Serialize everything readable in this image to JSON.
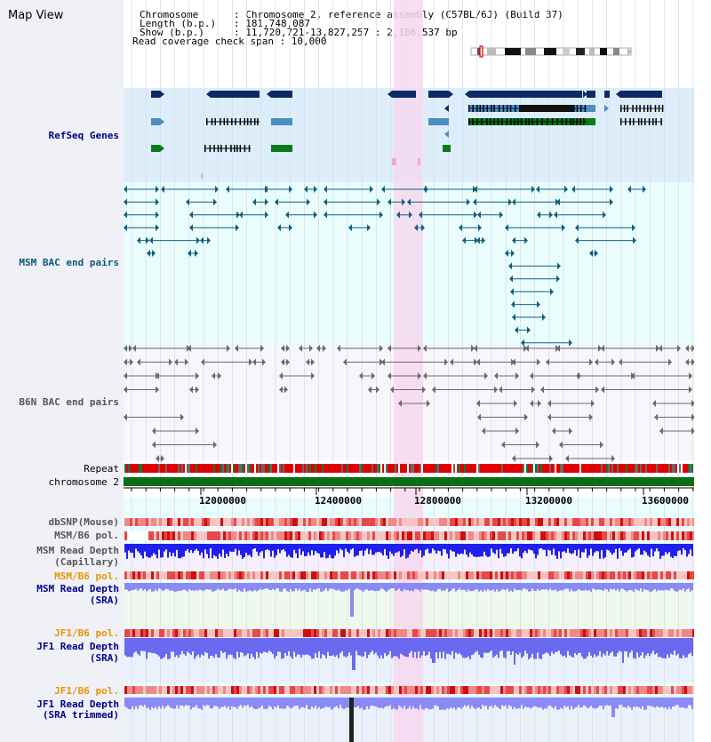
{
  "app": {
    "title": "Map View"
  },
  "header": {
    "line1": "Chromosome      : Chromosome 2, reference assembly (C57BL/6J) (Build 37)",
    "line2": "Length (b.p.)   : 181,748,087",
    "line3": "Show (b.p.)     : 11,720,721-13,827,257 : 2,106,537 bp",
    "line4": "Read coverage check span : 10,000"
  },
  "tracks": {
    "refseq": "RefSeq Genes",
    "msm_bac": "MSM BAC end pairs",
    "b6n_bac": "B6N BAC end pairs",
    "repeat": "Repeat",
    "chromosome": "chromosome 2",
    "dbsnp": "dbSNP(Mouse)",
    "msm_pol_1": "MSM/B6 pol.",
    "msm_rd_cap_1": "MSM Read Depth",
    "msm_rd_cap_2": "(Capillary)",
    "msm_pol_2": "MSM/B6 pol.",
    "msm_rd_sra_1": "MSM Read Depth",
    "msm_rd_sra_2": "(SRA)",
    "jf1_pol_1": "JF1/B6 pol.",
    "jf1_rd_sra_1": "JF1 Read Depth",
    "jf1_rd_sra_2": "(SRA)",
    "jf1_pol_2": "JF1/B6 pol.",
    "jf1_rd_trim_1": "JF1 Read Depth",
    "jf1_rd_trim_2": "(SRA trimmed)"
  },
  "axis": {
    "ticks": [
      "12000000",
      "12400000",
      "12800000",
      "13200000",
      "13600000"
    ]
  },
  "colors": {
    "refseq_bg": "#ddeefa",
    "gene_navy": "#0d2a66",
    "gene_steel": "#4a8fbf",
    "gene_green": "#0a7a1a",
    "highlight": "#f6d8f0",
    "bac_teal": "#11607e",
    "bac_gray": "#6a6a6a",
    "chrom": "#0a6e14",
    "repeat_red": "#e00000",
    "depth_blue": "#2020ee"
  }
}
